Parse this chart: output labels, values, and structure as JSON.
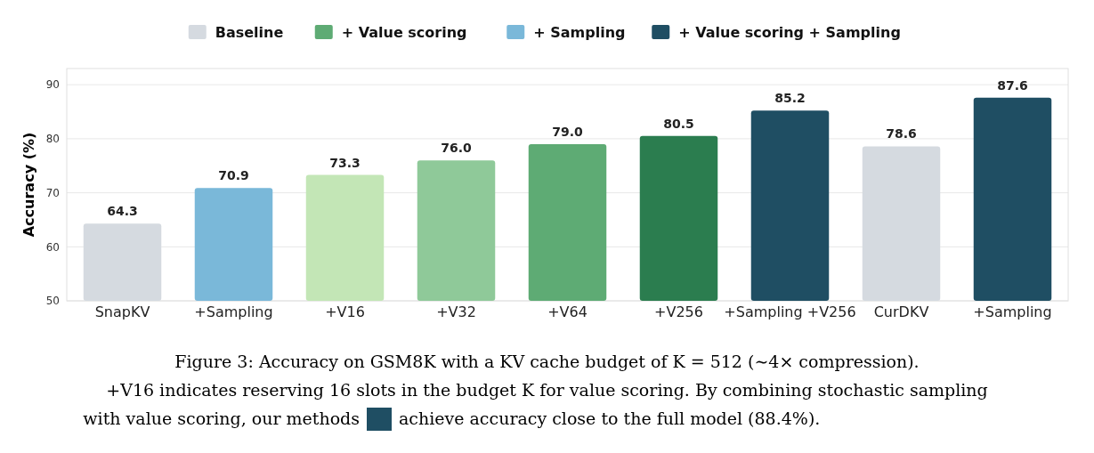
{
  "chart_data": {
    "type": "bar",
    "ylabel": "Accuracy (%)",
    "categories": [
      "SnapKV",
      "+Sampling",
      "+V16",
      "+V32",
      "+V64",
      "+V256",
      "+Sampling +V256",
      "CurDKV",
      "+Sampling"
    ],
    "series": [
      {
        "name": "Baseline",
        "color": "#d5dae0",
        "values": [
          64.3,
          null,
          null,
          null,
          null,
          null,
          null,
          78.6,
          null
        ],
        "value_labels": [
          "64.3",
          null,
          null,
          null,
          null,
          null,
          null,
          "78.6",
          null
        ]
      },
      {
        "name": "+ Value scoring",
        "color": "#5eab74",
        "colors": [
          null,
          null,
          "#c3e6b6",
          "#8fc999",
          "#5eab74",
          "#2b7d4f",
          null,
          null,
          null
        ],
        "values": [
          null,
          null,
          73.3,
          76.0,
          79.0,
          80.5,
          null,
          null,
          null
        ],
        "value_labels": [
          null,
          null,
          "73.3",
          "76.0",
          "79.0",
          "80.5",
          null,
          null,
          null
        ]
      },
      {
        "name": "+ Sampling",
        "color": "#7ab8d9",
        "values": [
          null,
          70.9,
          null,
          null,
          null,
          null,
          null,
          null,
          null
        ],
        "value_labels": [
          null,
          "70.9",
          null,
          null,
          null,
          null,
          null,
          null,
          null
        ]
      },
      {
        "name": "+ Value scoring + Sampling",
        "color": "#1f4e63",
        "values": [
          null,
          null,
          null,
          null,
          null,
          null,
          85.2,
          null,
          87.6
        ],
        "value_labels": [
          null,
          null,
          null,
          null,
          null,
          null,
          "85.2",
          null,
          "87.6"
        ]
      }
    ],
    "ylim": [
      50,
      93
    ],
    "yticks": [
      50,
      60,
      70,
      80,
      90
    ],
    "grid": "y",
    "legend": "top",
    "annotations": [
      "Figure 3: Accuracy on GSM8K with a KV cache budget of K = 512 (∼4× compression).",
      "+V16 indicates reserving 16 slots in the budget K for value scoring. By combining stochastic sampling",
      "with value scoring, our methods",
      "achieve accuracy close to the full model (88.4%)."
    ]
  }
}
